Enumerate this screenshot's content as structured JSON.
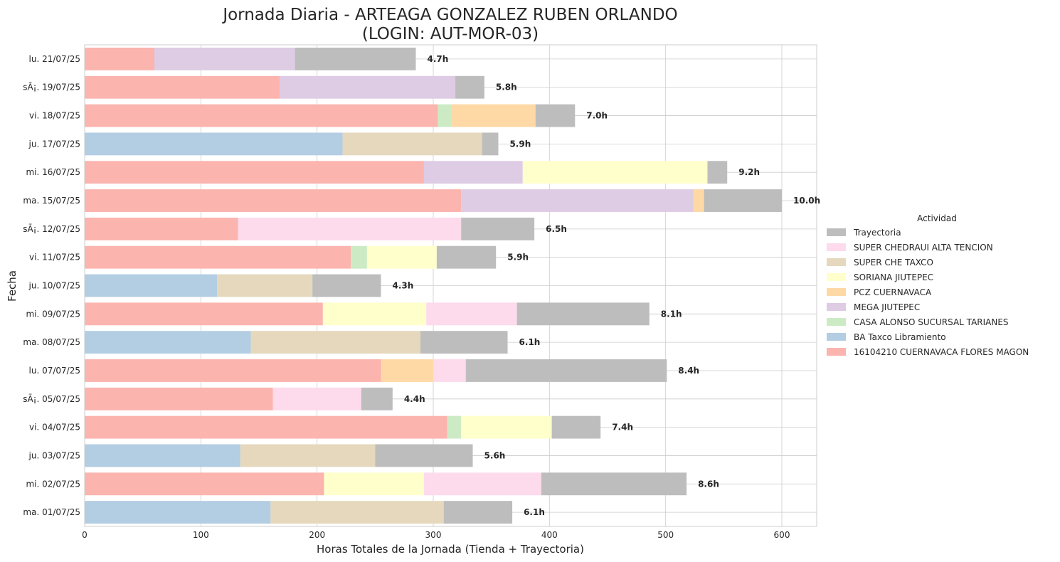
{
  "chart_data": {
    "type": "bar",
    "orientation": "horizontal",
    "stacked": true,
    "title": "Jornada Diaria - ARTEAGA GONZALEZ RUBEN ORLANDO",
    "subtitle": "(LOGIN: AUT-MOR-03)",
    "xlabel": "Horas Totales de la Jornada (Tienda + Trayectoria)",
    "ylabel": "Fecha",
    "xlim": [
      0,
      630
    ],
    "xticks": [
      "0",
      "100",
      "200",
      "300",
      "400",
      "500",
      "600"
    ],
    "grid": true,
    "legend_title": "Actividad",
    "legend_position": "right",
    "categories": [
      "lu. 21/07/25",
      "sÃ¡. 19/07/25",
      "vi. 18/07/25",
      "ju. 17/07/25",
      "mi. 16/07/25",
      "ma. 15/07/25",
      "sÃ¡. 12/07/25",
      "vi. 11/07/25",
      "ju. 10/07/25",
      "mi. 09/07/25",
      "ma. 08/07/25",
      "lu. 07/07/25",
      "sÃ¡. 05/07/25",
      "vi. 04/07/25",
      "ju. 03/07/25",
      "mi. 02/07/25",
      "ma. 01/07/25"
    ],
    "totals": [
      "4.7h",
      "5.8h",
      "7.0h",
      "5.9h",
      "9.2h",
      "10.0h",
      "6.5h",
      "5.9h",
      "4.3h",
      "8.1h",
      "6.1h",
      "8.4h",
      "4.4h",
      "7.4h",
      "5.6h",
      "8.6h",
      "6.1h"
    ],
    "series": [
      {
        "name": "16104210 CUERNAVACA FLORES MAGON",
        "color": "#fbb4ae",
        "values": [
          60,
          168,
          304,
          0,
          292,
          324,
          132,
          229,
          0,
          205,
          0,
          255,
          162,
          312,
          0,
          206,
          0
        ]
      },
      {
        "name": "BA Taxco Libramiento",
        "color": "#b3cde3",
        "values": [
          0,
          0,
          0,
          222,
          0,
          0,
          0,
          0,
          114,
          0,
          143,
          0,
          0,
          0,
          134,
          0,
          160
        ]
      },
      {
        "name": "CASA ALONSO SUCURSAL TARIANES",
        "color": "#ccebc5",
        "values": [
          0,
          0,
          12,
          0,
          0,
          0,
          0,
          14,
          0,
          0,
          0,
          0,
          0,
          12,
          0,
          0,
          0
        ]
      },
      {
        "name": "MEGA JIUTEPEC",
        "color": "#decbe4",
        "values": [
          121,
          151,
          0,
          0,
          85,
          200,
          0,
          0,
          0,
          0,
          0,
          0,
          0,
          0,
          0,
          0,
          0
        ]
      },
      {
        "name": "PCZ CUERNAVACA",
        "color": "#fed9a6",
        "values": [
          0,
          0,
          72,
          0,
          0,
          9,
          0,
          0,
          0,
          0,
          0,
          45,
          0,
          0,
          0,
          0,
          0
        ]
      },
      {
        "name": "SORIANA JIUTEPEC",
        "color": "#ffffcc",
        "values": [
          0,
          0,
          0,
          0,
          159,
          0,
          0,
          60,
          0,
          89,
          0,
          0,
          0,
          78,
          0,
          86,
          0
        ]
      },
      {
        "name": "SUPER CHE TAXCO",
        "color": "#e5d8bd",
        "values": [
          0,
          0,
          0,
          120,
          0,
          0,
          0,
          0,
          82,
          0,
          146,
          0,
          0,
          0,
          116,
          0,
          149
        ]
      },
      {
        "name": "SUPER CHEDRAUI ALTA TENCION",
        "color": "#fddaec",
        "values": [
          0,
          0,
          0,
          0,
          0,
          0,
          192,
          0,
          0,
          78,
          0,
          28,
          76,
          0,
          0,
          101,
          0
        ]
      },
      {
        "name": "Trayectoria",
        "color": "#bdbdbd",
        "values": [
          104,
          25,
          34,
          14,
          17,
          67,
          63,
          51,
          59,
          114,
          75,
          173,
          27,
          42,
          84,
          125,
          59
        ]
      }
    ],
    "legend_order": [
      "Trayectoria",
      "SUPER CHEDRAUI ALTA TENCION",
      "SUPER CHE TAXCO",
      "SORIANA JIUTEPEC",
      "PCZ CUERNAVACA",
      "MEGA JIUTEPEC",
      "CASA ALONSO SUCURSAL TARIANES",
      "BA Taxco Libramiento",
      "16104210 CUERNAVACA FLORES MAGON"
    ]
  }
}
